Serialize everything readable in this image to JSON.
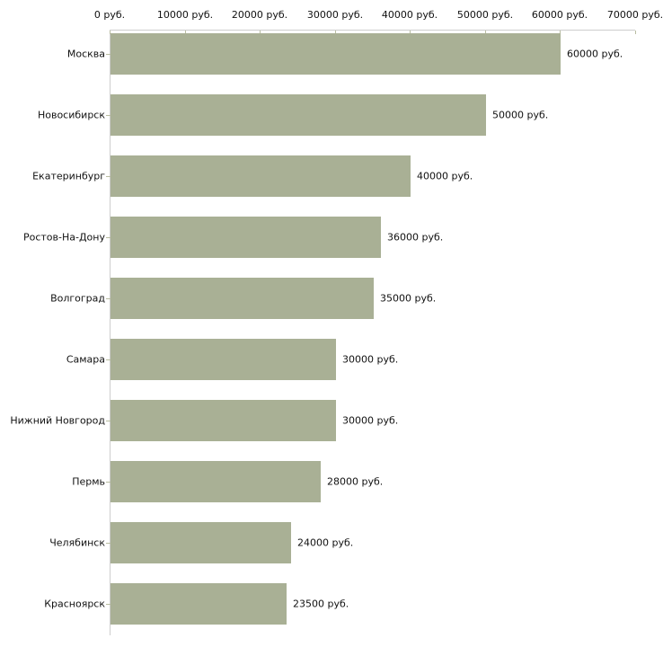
{
  "chart_data": {
    "type": "bar",
    "orientation": "horizontal",
    "title": "",
    "xlabel": "",
    "ylabel": "",
    "unit": "руб.",
    "categories": [
      "Москва",
      "Новосибирск",
      "Екатеринбург",
      "Ростов-На-Дону",
      "Волгоград",
      "Самара",
      "Нижний Новгород",
      "Пермь",
      "Челябинск",
      "Красноярск"
    ],
    "values": [
      60000,
      50000,
      40000,
      36000,
      35000,
      30000,
      30000,
      28000,
      24000,
      23500
    ],
    "value_labels": [
      "60000 руб.",
      "50000 руб.",
      "40000 руб.",
      "36000 руб.",
      "35000 руб.",
      "30000 руб.",
      "30000 руб.",
      "28000 руб.",
      "24000 руб.",
      "23500 руб."
    ],
    "x_ticks": [
      {
        "value": 0,
        "label": "0 руб."
      },
      {
        "value": 10000,
        "label": "10000 руб."
      },
      {
        "value": 20000,
        "label": "20000 руб."
      },
      {
        "value": 30000,
        "label": "30000 руб."
      },
      {
        "value": 40000,
        "label": "40000 руб."
      },
      {
        "value": 50000,
        "label": "50000 руб."
      },
      {
        "value": 60000,
        "label": "60000 руб."
      },
      {
        "value": 70000,
        "label": "70000 руб."
      }
    ],
    "xlim": [
      0,
      70000
    ],
    "grid": false,
    "legend": null,
    "colors": {
      "bar": "#a9b095",
      "axis_line": "#cdcdcd",
      "tick": "#b9bda1",
      "text": "#111111",
      "background": "#ffffff"
    }
  }
}
